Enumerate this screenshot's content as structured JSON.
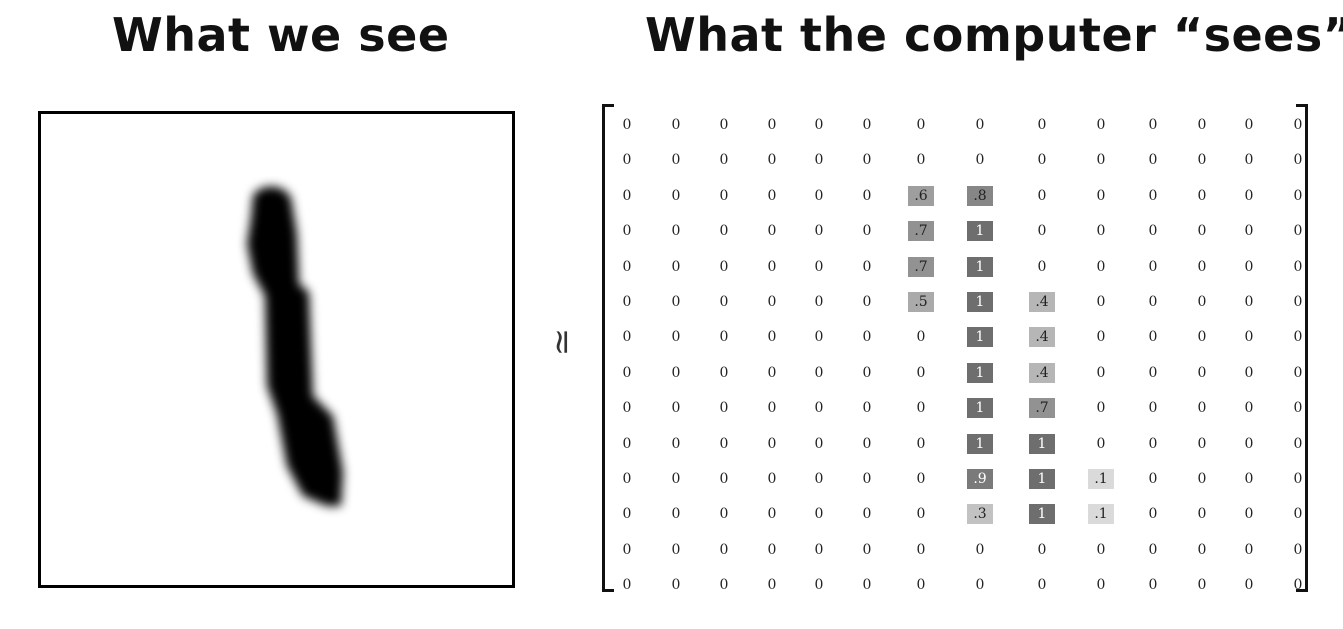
{
  "titles": {
    "left": "What we see",
    "right": "What the computer “sees”"
  },
  "approx_symbol": "≃",
  "matrix": {
    "rows": [
      [
        "0",
        "0",
        "0",
        "0",
        "0",
        "0",
        "0",
        "0",
        "0",
        "0",
        "0",
        "0",
        "0",
        "0"
      ],
      [
        "0",
        "0",
        "0",
        "0",
        "0",
        "0",
        "0",
        "0",
        "0",
        "0",
        "0",
        "0",
        "0",
        "0"
      ],
      [
        "0",
        "0",
        "0",
        "0",
        "0",
        "0",
        ".6",
        ".8",
        "0",
        "0",
        "0",
        "0",
        "0",
        "0"
      ],
      [
        "0",
        "0",
        "0",
        "0",
        "0",
        "0",
        ".7",
        "1",
        "0",
        "0",
        "0",
        "0",
        "0",
        "0"
      ],
      [
        "0",
        "0",
        "0",
        "0",
        "0",
        "0",
        ".7",
        "1",
        "0",
        "0",
        "0",
        "0",
        "0",
        "0"
      ],
      [
        "0",
        "0",
        "0",
        "0",
        "0",
        "0",
        ".5",
        "1",
        ".4",
        "0",
        "0",
        "0",
        "0",
        "0"
      ],
      [
        "0",
        "0",
        "0",
        "0",
        "0",
        "0",
        "0",
        "1",
        ".4",
        "0",
        "0",
        "0",
        "0",
        "0"
      ],
      [
        "0",
        "0",
        "0",
        "0",
        "0",
        "0",
        "0",
        "1",
        ".4",
        "0",
        "0",
        "0",
        "0",
        "0"
      ],
      [
        "0",
        "0",
        "0",
        "0",
        "0",
        "0",
        "0",
        "1",
        ".7",
        "0",
        "0",
        "0",
        "0",
        "0"
      ],
      [
        "0",
        "0",
        "0",
        "0",
        "0",
        "0",
        "0",
        "1",
        "1",
        "0",
        "0",
        "0",
        "0",
        "0"
      ],
      [
        "0",
        "0",
        "0",
        "0",
        "0",
        "0",
        "0",
        ".9",
        "1",
        ".1",
        "0",
        "0",
        "0",
        "0"
      ],
      [
        "0",
        "0",
        "0",
        "0",
        "0",
        "0",
        "0",
        ".3",
        "1",
        ".1",
        "0",
        "0",
        "0",
        "0"
      ],
      [
        "0",
        "0",
        "0",
        "0",
        "0",
        "0",
        "0",
        "0",
        "0",
        "0",
        "0",
        "0",
        "0",
        "0"
      ],
      [
        "0",
        "0",
        "0",
        "0",
        "0",
        "0",
        "0",
        "0",
        "0",
        "0",
        "0",
        "0",
        "0",
        "0"
      ]
    ]
  },
  "colors": {
    "ink": "#000000",
    "cell_shade_dark": "#7a7a7a",
    "cell_shade_light": "#dddddd"
  }
}
